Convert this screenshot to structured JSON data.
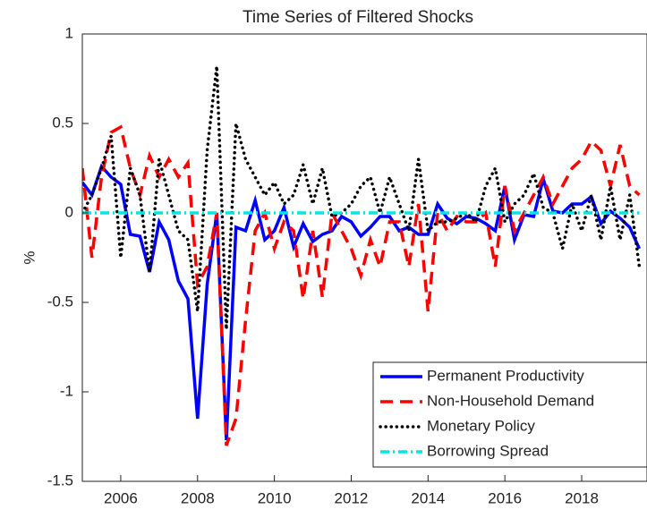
{
  "chart_data": {
    "type": "line",
    "title": "Time Series of Filtered Shocks",
    "y_label": "%",
    "x": [
      2005,
      2005.25,
      2005.5,
      2005.75,
      2006,
      2006.25,
      2006.5,
      2006.75,
      2007,
      2007.25,
      2007.5,
      2007.75,
      2008,
      2008.25,
      2008.5,
      2008.75,
      2009,
      2009.25,
      2009.5,
      2009.75,
      2010,
      2010.25,
      2010.5,
      2010.75,
      2011,
      2011.25,
      2011.5,
      2011.75,
      2012,
      2012.25,
      2012.5,
      2012.75,
      2013,
      2013.25,
      2013.5,
      2013.75,
      2014,
      2014.25,
      2014.5,
      2014.75,
      2015,
      2015.25,
      2015.5,
      2015.75,
      2016,
      2016.25,
      2016.5,
      2016.75,
      2017,
      2017.25,
      2017.5,
      2017.75,
      2018,
      2018.25,
      2018.5,
      2018.75,
      2019,
      2019.25,
      2019.5
    ],
    "series": [
      {
        "name": "Permanent Productivity",
        "color": "#0000ff",
        "style": "solid",
        "values": [
          0.17,
          0.1,
          0.26,
          0.2,
          0.16,
          -0.12,
          -0.13,
          -0.33,
          -0.05,
          -0.15,
          -0.38,
          -0.48,
          -1.15,
          -0.4,
          0.0,
          -1.27,
          -0.08,
          -0.1,
          0.07,
          -0.15,
          -0.1,
          0.03,
          -0.19,
          -0.06,
          -0.16,
          -0.12,
          -0.1,
          -0.02,
          -0.05,
          -0.13,
          -0.08,
          -0.02,
          -0.02,
          -0.1,
          -0.08,
          -0.12,
          -0.12,
          0.05,
          -0.03,
          -0.06,
          -0.02,
          -0.03,
          -0.06,
          -0.1,
          0.15,
          -0.15,
          -0.01,
          -0.02,
          0.19,
          0.01,
          0.0,
          0.05,
          0.05,
          0.09,
          -0.06,
          0.01,
          -0.03,
          -0.08,
          -0.2
        ]
      },
      {
        "name": "Non-Household Demand",
        "color": "#ff0000",
        "style": "dashed",
        "values": [
          0.25,
          -0.25,
          0.2,
          0.45,
          0.48,
          0.25,
          0.1,
          0.32,
          0.2,
          0.3,
          0.2,
          0.28,
          -0.4,
          -0.3,
          0.0,
          -1.3,
          -1.15,
          -0.6,
          -0.1,
          0.0,
          -0.2,
          -0.05,
          -0.1,
          -0.48,
          -0.1,
          -0.47,
          0.0,
          -0.1,
          -0.2,
          -0.35,
          -0.15,
          -0.3,
          -0.05,
          -0.05,
          -0.3,
          0.05,
          -0.55,
          0.0,
          -0.1,
          -0.02,
          -0.05,
          -0.05,
          0.0,
          -0.3,
          0.15,
          -0.1,
          0.0,
          0.1,
          0.2,
          0.05,
          0.15,
          0.25,
          0.3,
          0.4,
          0.35,
          0.15,
          0.38,
          0.15,
          0.1
        ]
      },
      {
        "name": "Monetary Policy",
        "color": "#000000",
        "style": "dotted",
        "values": [
          0.0,
          0.1,
          0.25,
          0.43,
          -0.25,
          0.25,
          0.1,
          -0.33,
          0.3,
          0.1,
          -0.1,
          -0.15,
          -0.55,
          0.35,
          0.82,
          -0.65,
          0.5,
          0.3,
          0.2,
          0.1,
          0.17,
          0.05,
          0.1,
          0.27,
          0.05,
          0.25,
          -0.02,
          0.0,
          0.05,
          0.15,
          0.2,
          0.0,
          0.2,
          0.05,
          -0.1,
          0.3,
          -0.1,
          -0.05,
          -0.05,
          -0.03,
          0.0,
          -0.05,
          0.15,
          0.25,
          -0.05,
          0.05,
          0.1,
          0.22,
          0.03,
          0.0,
          -0.2,
          0.05,
          -0.1,
          0.1,
          -0.15,
          0.15,
          -0.15,
          0.1,
          -0.3
        ]
      },
      {
        "name": "Borrowing Spread",
        "color": "#00e5e5",
        "style": "dashdot",
        "values": [
          0,
          0,
          0,
          0,
          0,
          0,
          0,
          0,
          0,
          0,
          0,
          0,
          0,
          0,
          0,
          0,
          0,
          0,
          0,
          0,
          0,
          0,
          0,
          0,
          0,
          0,
          0,
          0,
          0,
          0,
          0,
          0,
          0,
          0,
          0,
          0,
          0,
          0,
          0,
          0,
          0,
          0,
          0,
          0,
          0,
          0,
          0,
          0,
          0,
          0,
          0,
          0,
          0,
          0,
          0,
          0,
          0,
          0,
          0
        ]
      }
    ],
    "xlim": [
      2005,
      2019.7
    ],
    "xticks": [
      2006,
      2008,
      2010,
      2012,
      2014,
      2016,
      2018
    ],
    "ylim": [
      -1.5,
      1
    ],
    "yticks": [
      -1.5,
      -1,
      -0.5,
      0,
      0.5,
      1
    ],
    "grid": false,
    "legend": "lower right"
  }
}
